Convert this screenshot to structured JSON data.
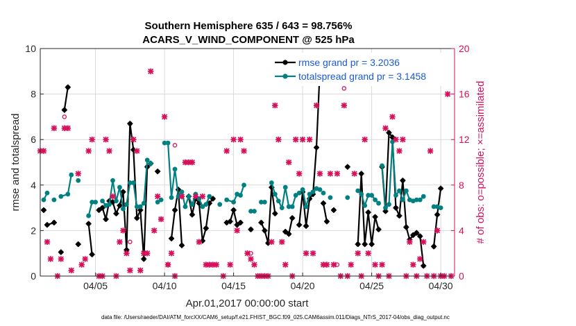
{
  "chart_data": {
    "type": "line",
    "title": "Southern Hemisphere 635 / 643 = 98.756%",
    "subtitle": "ACARS_V_WIND_COMPONENT @ 525 hPa",
    "xlabel": "Apr.01,2017 00:00:00 start",
    "ylabel": "rmse and totalspread",
    "y2label": "# of obs: o=possible; ×=assimilated",
    "footnote": "data file: /Users/raeder/DAI/ATM_forcXX/CAM6_setup/f.e21.FHIST_BGC.f09_025.CAM6assim.011/Diags_NTrS_2017-04/obs_diag_output.nc",
    "xlim": [
      1,
      31
    ],
    "ylim": [
      0,
      10
    ],
    "y2lim": [
      0,
      20
    ],
    "x_ticks": [
      5,
      10,
      15,
      20,
      25,
      30
    ],
    "x_tick_labels": [
      "04/05",
      "04/10",
      "04/15",
      "04/20",
      "04/25",
      "04/30"
    ],
    "y_ticks": [
      0,
      2,
      4,
      6,
      8,
      10
    ],
    "y_tick_labels": [
      "0",
      "2",
      "4",
      "6",
      "8",
      "10"
    ],
    "y2_ticks": [
      0,
      4,
      8,
      12,
      16,
      20
    ],
    "y2_tick_labels": [
      "0",
      "4",
      "8",
      "12",
      "16",
      "20"
    ],
    "legend_position": "top-right",
    "colors": {
      "rmse": "#000000",
      "spread": "#008080",
      "obs": "#d6105a",
      "y2axis": "#d6105a",
      "legend_text": "#1a5ad8"
    },
    "series": [
      {
        "name": "rmse grand pr = 3.2036",
        "color": "#000000",
        "segments": [
          [
            [
              1.25,
              2.9
            ]
          ],
          [
            [
              1.5,
              2.25
            ],
            [
              2.0,
              2.35
            ]
          ],
          [
            [
              2.5,
              1.05
            ]
          ],
          [
            [
              2.75,
              7.3
            ],
            [
              3.0,
              8.3
            ]
          ],
          [
            [
              3.75,
              1.4
            ]
          ],
          [
            [
              4.5,
              2.3
            ],
            [
              4.75,
              0.95
            ]
          ],
          [
            [
              5.25,
              2.9
            ],
            [
              5.5,
              3.0
            ],
            [
              5.75,
              2.5
            ],
            [
              6.0,
              3.3
            ],
            [
              6.25,
              3.25
            ],
            [
              6.5,
              2.75
            ],
            [
              6.75,
              3.1
            ],
            [
              7.0,
              3.7
            ],
            [
              7.25,
              1.15
            ],
            [
              7.5,
              6.7
            ],
            [
              7.75,
              5.55
            ],
            [
              8.0,
              2.55
            ],
            [
              8.25,
              2.9
            ],
            [
              8.5,
              0.75
            ],
            [
              8.75,
              4.8
            ],
            [
              9.0,
              4.95
            ]
          ],
          [
            [
              9.5,
              4.6
            ]
          ],
          [
            [
              10.5,
              1.65
            ],
            [
              10.75,
              2.9
            ],
            [
              11.0,
              3.8
            ],
            [
              11.25,
              1.35
            ]
          ],
          [
            [
              11.75,
              3.5
            ],
            [
              12.0,
              2.7
            ],
            [
              12.25,
              3.4
            ],
            [
              12.5,
              3.2
            ],
            [
              12.75,
              1.55
            ],
            [
              13.0,
              2.1
            ],
            [
              13.25,
              3.2
            ],
            [
              13.5,
              3.4
            ]
          ],
          [
            [
              14.5,
              2.35
            ],
            [
              14.75,
              2.4
            ],
            [
              15.0,
              2.9
            ],
            [
              15.25,
              2.25
            ],
            [
              15.5,
              2.35
            ]
          ],
          [
            [
              16.25,
              2.05
            ]
          ],
          [
            [
              17.0,
              2.35
            ],
            [
              17.25,
              2.0
            ],
            [
              17.5,
              1.45
            ],
            [
              17.75,
              3.9
            ],
            [
              18.0,
              2.75
            ]
          ],
          [
            [
              18.75,
              1.95
            ],
            [
              19.0,
              1.85
            ],
            [
              19.25,
              2.55
            ]
          ],
          [
            [
              19.75,
              2.25
            ],
            [
              20.0,
              3.7
            ],
            [
              20.25,
              2.2
            ],
            [
              20.5,
              3.4
            ],
            [
              20.75,
              3.6
            ],
            [
              21.0,
              5.65
            ],
            [
              21.25,
              9.1
            ]
          ],
          [
            [
              21.5,
              3.2
            ],
            [
              21.75,
              2.4
            ]
          ],
          [
            [
              22.25,
              2.9
            ]
          ],
          [
            [
              23.25,
              4.8
            ]
          ],
          [
            [
              24.0,
              1.4
            ],
            [
              24.25,
              4.5
            ],
            [
              24.5,
              1.4
            ],
            [
              24.75,
              2.8
            ],
            [
              25.0,
              1.4
            ],
            [
              25.25,
              2.6
            ],
            [
              25.5,
              2.05
            ]
          ],
          [
            [
              25.75,
              4.8
            ],
            [
              26.0,
              2.85
            ],
            [
              26.25,
              6.3
            ],
            [
              26.5,
              6.1
            ],
            [
              26.75,
              3.0
            ],
            [
              27.0,
              2.65
            ],
            [
              27.25,
              4.2
            ],
            [
              27.5,
              2.15
            ],
            [
              27.75,
              1.6
            ],
            [
              28.0,
              1.8
            ],
            [
              28.25,
              1.9
            ],
            [
              28.5,
              1.75
            ],
            [
              28.75,
              0.45
            ]
          ],
          [
            [
              29.5,
              1.3
            ],
            [
              29.75,
              2.7
            ],
            [
              30.0,
              3.85
            ]
          ]
        ]
      },
      {
        "name": "totalspread grand pr = 3.1458",
        "color": "#008080",
        "segments": [
          [
            [
              1.25,
              3.35
            ],
            [
              1.5,
              3.65
            ]
          ],
          [
            [
              2.0,
              3.35
            ]
          ],
          [
            [
              2.5,
              3.5
            ],
            [
              3.0,
              3.6
            ],
            [
              3.25,
              4.45
            ]
          ],
          [
            [
              3.75,
              4.2
            ]
          ],
          [
            [
              4.5,
              2.65
            ],
            [
              4.75,
              3.25
            ],
            [
              5.0,
              3.25
            ]
          ],
          [
            [
              5.5,
              3.3
            ],
            [
              5.75,
              3.1
            ],
            [
              6.0,
              3.15
            ],
            [
              6.25,
              4.2
            ],
            [
              6.5,
              3.3
            ],
            [
              6.75,
              3.9
            ],
            [
              7.0,
              2.95
            ],
            [
              7.25,
              3.15
            ],
            [
              7.5,
              4.1
            ],
            [
              7.75,
              4.1
            ],
            [
              8.0,
              3.05
            ],
            [
              8.25,
              3.05
            ],
            [
              8.5,
              3.2
            ],
            [
              8.75,
              5.1
            ],
            [
              9.0,
              4.95
            ]
          ],
          [
            [
              9.5,
              3.25
            ],
            [
              9.75,
              3.35
            ]
          ],
          [
            [
              10.0,
              5.85
            ],
            [
              10.25,
              5.85
            ],
            [
              10.5,
              3.45
            ],
            [
              10.75,
              4.7
            ],
            [
              11.0,
              3.5
            ],
            [
              11.25,
              3.7
            ],
            [
              11.5,
              3.05
            ],
            [
              11.75,
              3.5
            ],
            [
              12.0,
              3.15
            ],
            [
              12.25,
              3.6
            ],
            [
              12.5,
              3.4
            ],
            [
              12.75,
              3.05
            ],
            [
              13.0,
              3.15
            ],
            [
              13.25,
              3.5
            ]
          ],
          [
            [
              14.0,
              3.15
            ]
          ],
          [
            [
              14.5,
              3.35
            ],
            [
              15.0,
              3.25
            ],
            [
              15.25,
              3.6
            ],
            [
              15.5,
              3.55
            ],
            [
              15.75,
              4.0
            ]
          ],
          [
            [
              16.25,
              2.85
            ],
            [
              16.5,
              2.85
            ]
          ],
          [
            [
              17.0,
              3.25
            ],
            [
              17.25,
              3.25
            ]
          ],
          [
            [
              17.75,
              4.1
            ],
            [
              18.0,
              3.6
            ],
            [
              18.25,
              3.3
            ],
            [
              18.5,
              3.0
            ],
            [
              18.75,
              3.9
            ],
            [
              19.0,
              3.05
            ],
            [
              19.25,
              3.05
            ],
            [
              19.5,
              3.55
            ]
          ],
          [
            [
              19.75,
              3.65
            ],
            [
              20.0,
              3.8
            ],
            [
              20.25,
              3.05
            ],
            [
              20.5,
              3.6
            ],
            [
              20.75,
              3.7
            ],
            [
              21.0,
              3.85
            ],
            [
              21.25,
              3.8
            ]
          ],
          [
            [
              21.5,
              3.65
            ]
          ],
          [
            [
              22.0,
              3.45
            ]
          ],
          [
            [
              23.25,
              3.45
            ]
          ],
          [
            [
              24.0,
              3.75
            ],
            [
              24.25,
              3.6
            ],
            [
              24.5,
              3.1
            ],
            [
              24.75,
              3.55
            ],
            [
              25.0,
              3.55
            ],
            [
              25.25,
              3.35
            ],
            [
              25.5,
              3.2
            ]
          ],
          [
            [
              25.75,
              4.85
            ],
            [
              26.0,
              3.0
            ],
            [
              26.25,
              3.15
            ],
            [
              26.5,
              5.9
            ],
            [
              26.75,
              3.55
            ],
            [
              27.0,
              3.75
            ],
            [
              27.25,
              3.35
            ],
            [
              27.5,
              3.75
            ],
            [
              27.75,
              3.35
            ],
            [
              28.0,
              3.3
            ],
            [
              28.25,
              3.35
            ],
            [
              28.5,
              3.35
            ],
            [
              28.75,
              3.5
            ]
          ],
          [
            [
              29.5,
              3.05
            ],
            [
              29.75,
              3.05
            ],
            [
              30.0,
              3.0
            ]
          ]
        ]
      }
    ],
    "obs_assimilated": [
      [
        1.0,
        11
      ],
      [
        1.25,
        11
      ],
      [
        1.5,
        3
      ],
      [
        1.75,
        1.5
      ],
      [
        2.0,
        13
      ],
      [
        2.25,
        0
      ],
      [
        2.5,
        1.5
      ],
      [
        2.75,
        13
      ],
      [
        3.0,
        13
      ],
      [
        3.25,
        0.5
      ],
      [
        3.75,
        9
      ],
      [
        4.0,
        1
      ],
      [
        4.25,
        1.5
      ],
      [
        4.5,
        11
      ],
      [
        4.75,
        12
      ],
      [
        5.25,
        0
      ],
      [
        5.5,
        0
      ],
      [
        5.75,
        12
      ],
      [
        6.0,
        11
      ],
      [
        6.25,
        7
      ],
      [
        6.5,
        0
      ],
      [
        6.75,
        3
      ],
      [
        7.0,
        4
      ],
      [
        7.25,
        2
      ],
      [
        7.5,
        0.5
      ],
      [
        7.75,
        12
      ],
      [
        8.0,
        11
      ],
      [
        8.25,
        0.5
      ],
      [
        8.5,
        2
      ],
      [
        8.75,
        2
      ],
      [
        9.0,
        18
      ],
      [
        9.25,
        4
      ],
      [
        9.5,
        7
      ],
      [
        9.75,
        5
      ],
      [
        10.0,
        14
      ],
      [
        10.25,
        1
      ],
      [
        10.5,
        2
      ],
      [
        10.75,
        0
      ],
      [
        11.25,
        7
      ],
      [
        11.5,
        10
      ],
      [
        11.75,
        10
      ],
      [
        12.0,
        10
      ],
      [
        12.25,
        7
      ],
      [
        12.5,
        3
      ],
      [
        12.75,
        7
      ],
      [
        13.0,
        1
      ],
      [
        13.25,
        1
      ],
      [
        13.5,
        1
      ],
      [
        13.75,
        1
      ],
      [
        14.25,
        0
      ],
      [
        14.5,
        11
      ],
      [
        14.75,
        1
      ],
      [
        15.0,
        12
      ],
      [
        15.25,
        4
      ],
      [
        15.5,
        12
      ],
      [
        15.75,
        11
      ],
      [
        16.0,
        2
      ],
      [
        16.25,
        1.5
      ],
      [
        16.5,
        1
      ],
      [
        16.75,
        0
      ],
      [
        17.0,
        0
      ],
      [
        17.25,
        0
      ],
      [
        17.5,
        0
      ],
      [
        17.75,
        3
      ],
      [
        18.0,
        15
      ],
      [
        18.25,
        12
      ],
      [
        18.5,
        3
      ],
      [
        18.75,
        1
      ],
      [
        19.0,
        10
      ],
      [
        19.25,
        0
      ],
      [
        19.5,
        12
      ],
      [
        19.75,
        9
      ],
      [
        20.0,
        12
      ],
      [
        20.25,
        2
      ],
      [
        20.5,
        12
      ],
      [
        20.75,
        2
      ],
      [
        21.0,
        15
      ],
      [
        21.25,
        9
      ],
      [
        21.5,
        1
      ],
      [
        21.75,
        1
      ],
      [
        22.0,
        9
      ],
      [
        22.25,
        1
      ],
      [
        22.5,
        9
      ],
      [
        22.75,
        0
      ],
      [
        23.0,
        15
      ],
      [
        23.25,
        0
      ],
      [
        23.5,
        1
      ],
      [
        23.75,
        9
      ],
      [
        24.0,
        2
      ],
      [
        24.25,
        0
      ],
      [
        24.5,
        12
      ],
      [
        24.75,
        2
      ],
      [
        25.25,
        1
      ],
      [
        25.5,
        0
      ],
      [
        25.75,
        1
      ],
      [
        26.0,
        13
      ],
      [
        26.25,
        0
      ],
      [
        26.5,
        14
      ],
      [
        26.75,
        12
      ],
      [
        27.0,
        11
      ],
      [
        27.25,
        12
      ],
      [
        27.5,
        0
      ],
      [
        27.75,
        3
      ],
      [
        28.0,
        1
      ],
      [
        28.25,
        0
      ],
      [
        28.5,
        1.5
      ],
      [
        28.75,
        3
      ],
      [
        29.0,
        0
      ],
      [
        29.25,
        11
      ],
      [
        29.5,
        0
      ],
      [
        29.75,
        4
      ],
      [
        30.0,
        0
      ],
      [
        30.25,
        0
      ],
      [
        30.5,
        16
      ],
      [
        30.75,
        0
      ]
    ],
    "obs_possible": [
      [
        2.75,
        14
      ],
      [
        7.5,
        3
      ],
      [
        10.25,
        1
      ],
      [
        10.75,
        11.5
      ],
      [
        16.25,
        2
      ],
      [
        22.5,
        1
      ],
      [
        23.0,
        16.5
      ]
    ]
  }
}
